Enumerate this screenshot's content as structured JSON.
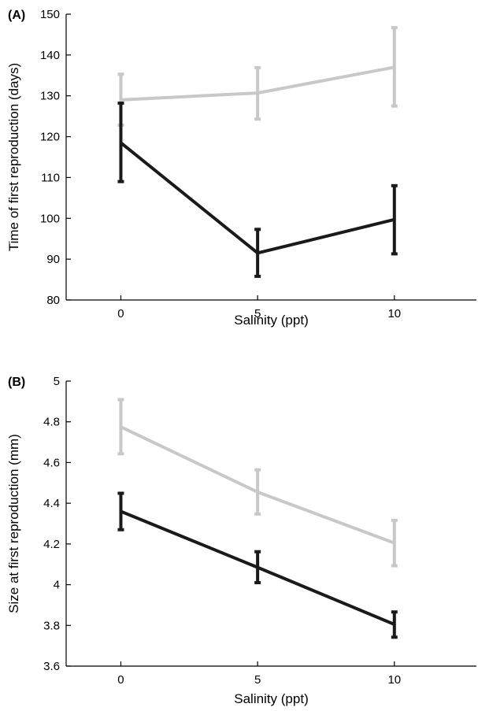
{
  "chart_data": [
    {
      "type": "line",
      "panel_label": "(A)",
      "xlabel": "Salinity (ppt)",
      "ylabel": "Time of first reproduction (days)",
      "x": [
        0,
        5,
        10
      ],
      "xlim": [
        -2,
        13
      ],
      "ylim": [
        80,
        150
      ],
      "xticks": [
        0,
        5,
        10
      ],
      "yticks": [
        80,
        90,
        100,
        110,
        120,
        130,
        140,
        150
      ],
      "grid": false,
      "series": [
        {
          "color": "#c8c8c8",
          "values": [
            129,
            130.7,
            137
          ],
          "error_low": [
            122.8,
            124.3,
            127.5
          ],
          "error_high": [
            135.3,
            136.9,
            146.7
          ]
        },
        {
          "color": "#1a1a1a",
          "values": [
            118.5,
            91.5,
            99.7
          ],
          "error_low": [
            109,
            85.8,
            91.3
          ],
          "error_high": [
            128.2,
            97.3,
            108
          ]
        }
      ]
    },
    {
      "type": "line",
      "panel_label": "(B)",
      "xlabel": "Salinity (ppt)",
      "ylabel": "Size at first reproduction (mm)",
      "x": [
        0,
        5,
        10
      ],
      "xlim": [
        -2,
        13
      ],
      "ylim": [
        3.6,
        5
      ],
      "xticks": [
        0,
        5,
        10
      ],
      "yticks": [
        3.6,
        3.8,
        4,
        4.2,
        4.4,
        4.6,
        4.8,
        5
      ],
      "grid": false,
      "series": [
        {
          "color": "#c8c8c8",
          "values": [
            4.775,
            4.455,
            4.205
          ],
          "error_low": [
            4.643,
            4.347,
            4.093
          ],
          "error_high": [
            4.909,
            4.564,
            4.316
          ]
        },
        {
          "color": "#1a1a1a",
          "values": [
            4.36,
            4.085,
            3.805
          ],
          "error_low": [
            4.27,
            4.01,
            3.742
          ],
          "error_high": [
            4.449,
            4.162,
            3.866
          ]
        }
      ]
    }
  ]
}
